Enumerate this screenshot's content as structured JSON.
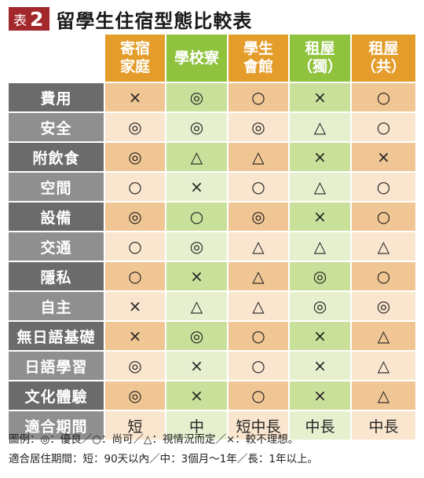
{
  "title": {
    "badge_label": "表",
    "badge_number": "2",
    "text": "留學生住宿型態比較表"
  },
  "columns": [
    {
      "label": "寄宿\n家庭",
      "color": "#e49d2b"
    },
    {
      "label": "學校寮",
      "color": "#8fc33e"
    },
    {
      "label": "學生\n會館",
      "color": "#e49d2b"
    },
    {
      "label": "租屋\n（獨）",
      "color": "#8fc33e"
    },
    {
      "label": "租屋\n（共）",
      "color": "#e49d2b"
    }
  ],
  "rows": [
    {
      "label": "費用",
      "values": [
        "×",
        "◎",
        "○",
        "×",
        "○"
      ]
    },
    {
      "label": "安全",
      "values": [
        "◎",
        "◎",
        "◎",
        "△",
        "○"
      ]
    },
    {
      "label": "附飲食",
      "values": [
        "◎",
        "△",
        "△",
        "×",
        "×"
      ]
    },
    {
      "label": "空間",
      "values": [
        "○",
        "×",
        "○",
        "△",
        "○"
      ]
    },
    {
      "label": "設備",
      "values": [
        "◎",
        "○",
        "◎",
        "×",
        "○"
      ]
    },
    {
      "label": "交通",
      "values": [
        "○",
        "◎",
        "△",
        "△",
        "△"
      ]
    },
    {
      "label": "隱私",
      "values": [
        "○",
        "×",
        "△",
        "◎",
        "○"
      ]
    },
    {
      "label": "自主",
      "values": [
        "×",
        "△",
        "△",
        "◎",
        "◎"
      ]
    },
    {
      "label": "無日語基礎",
      "values": [
        "×",
        "◎",
        "○",
        "×",
        "△"
      ]
    },
    {
      "label": "日語學習",
      "values": [
        "◎",
        "×",
        "○",
        "×",
        "△"
      ]
    },
    {
      "label": "文化體驗",
      "values": [
        "◎",
        "×",
        "○",
        "×",
        "△"
      ]
    },
    {
      "label": "適合期間",
      "values": [
        "短",
        "中",
        "短中長",
        "中長",
        "中長"
      ]
    }
  ],
  "legend": {
    "line1": "圖例：◎：優良／○：尚可／△：視情況而定／×：較不理想。",
    "line2": "適合居住期間：短：90天以內／中：3個月～1年／長：1年以上。"
  }
}
